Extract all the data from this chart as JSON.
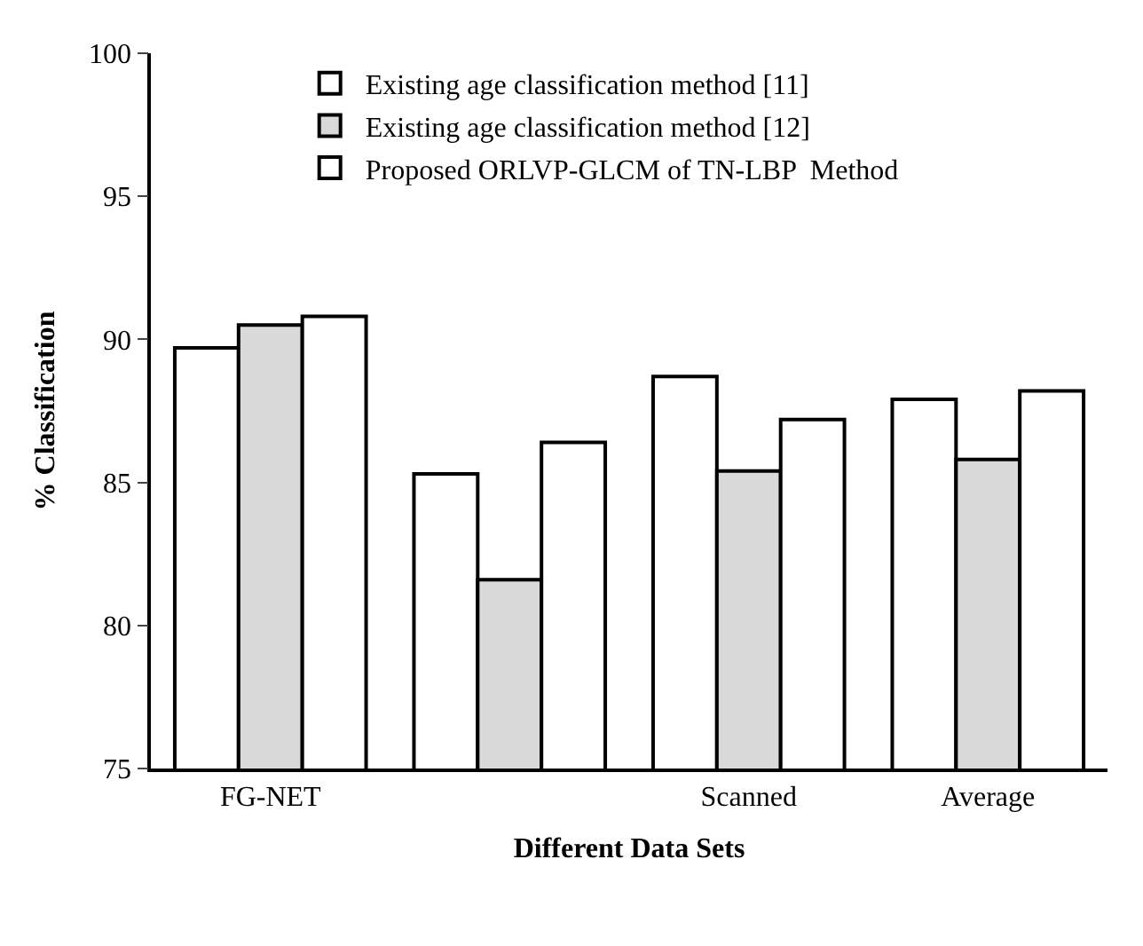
{
  "chart_data": {
    "type": "bar",
    "xlabel": "Different Data Sets",
    "ylabel": "% Classification",
    "categories": [
      "FG-NET",
      null,
      "Scanned",
      "Average"
    ],
    "series": [
      {
        "name": "Existing age classification method [11]",
        "color": "#ffffff",
        "values": [
          89.7,
          85.3,
          88.7,
          87.9
        ]
      },
      {
        "name": "Existing age classification method [12]",
        "color": "#d9d9d9",
        "values": [
          90.5,
          81.6,
          85.4,
          85.8
        ]
      },
      {
        "name": "Proposed ORLVP-GLCM of TN-LBP  Method",
        "color": "#ffffff",
        "values": [
          90.8,
          86.4,
          87.2,
          88.2
        ]
      }
    ],
    "ylim": [
      75,
      100
    ],
    "yticks": [
      75,
      80,
      85,
      90,
      95,
      100
    ],
    "legend": "top"
  }
}
